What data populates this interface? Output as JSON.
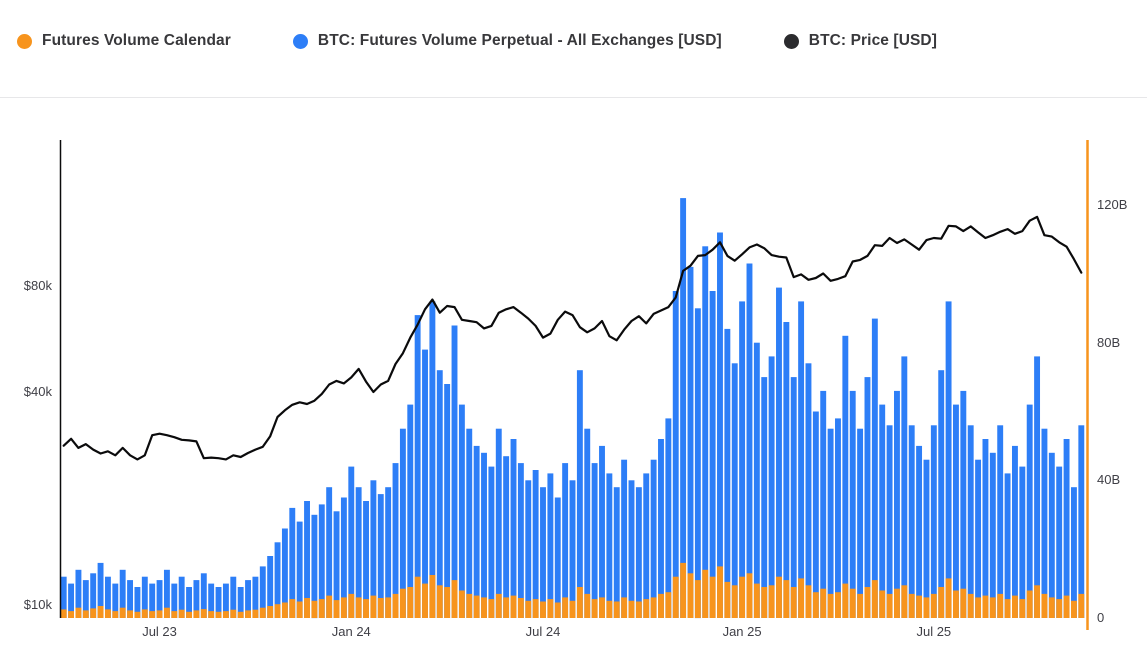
{
  "legend": {
    "items": [
      {
        "label": "Futures Volume Calendar",
        "color": "#f7941d"
      },
      {
        "label": "BTC: Futures Volume Perpetual - All Exchanges [USD]",
        "color": "#2d7ef7"
      },
      {
        "label": "BTC: Price [USD]",
        "color": "#2b2b2e"
      }
    ]
  },
  "chart_data": {
    "type": "mixed",
    "cursor_color": "#f7941d",
    "x_ticks": [
      {
        "label": "Jul 23",
        "index": 13
      },
      {
        "label": "Jan 24",
        "index": 39
      },
      {
        "label": "Jul 24",
        "index": 65
      },
      {
        "label": "Jan 25",
        "index": 92
      },
      {
        "label": "Jul 25",
        "index": 118
      }
    ],
    "left_axis": {
      "scale": "log",
      "unit": "USD",
      "position": "left",
      "ticks": [
        {
          "label": "$10k",
          "value": 10000
        },
        {
          "label": "$40k",
          "value": 40000
        },
        {
          "label": "$80k",
          "value": 80000
        }
      ]
    },
    "right_axis": {
      "scale": "linear",
      "unit": "billion USD",
      "max": 120,
      "position": "right",
      "ticks": [
        {
          "label": "0",
          "value": 0
        },
        {
          "label": "40B",
          "value": 40
        },
        {
          "label": "80B",
          "value": 80
        },
        {
          "label": "120B",
          "value": 120
        }
      ]
    },
    "series": [
      {
        "name": "Futures Volume Calendar",
        "type": "bar",
        "axis": "right",
        "unit": "billion USD",
        "color": "#f7941d",
        "values": [
          2.5,
          2,
          3,
          2.2,
          2.8,
          3.5,
          2.5,
          2,
          3,
          2.2,
          1.8,
          2.5,
          2,
          2.2,
          3,
          2,
          2.4,
          1.8,
          2.2,
          2.6,
          2,
          1.8,
          2,
          2.4,
          1.8,
          2.2,
          2.4,
          3,
          3.5,
          4,
          4.5,
          5.5,
          4.8,
          5.8,
          5,
          5.5,
          6.5,
          5.2,
          6,
          7,
          6,
          5.5,
          6.5,
          5.8,
          6,
          7,
          8.5,
          9,
          12,
          10,
          12.5,
          9.5,
          9,
          11,
          8,
          7,
          6.5,
          6,
          5.5,
          7,
          6,
          6.5,
          5.8,
          5,
          5.5,
          4.8,
          5.5,
          4.5,
          6,
          5,
          9,
          7,
          5.5,
          6,
          5,
          4.8,
          6,
          5,
          4.8,
          5.5,
          6,
          7,
          7.5,
          12,
          16,
          13,
          11,
          14,
          12,
          15,
          10.5,
          9.5,
          12,
          13,
          10,
          9,
          9.5,
          12,
          11,
          9,
          11.5,
          9.5,
          7.5,
          8.5,
          7,
          7.5,
          10,
          8.5,
          7,
          9,
          11,
          8,
          7,
          8.5,
          9.5,
          7,
          6.5,
          6,
          7,
          9,
          11.5,
          8,
          8.5,
          7,
          6,
          6.5,
          6,
          7,
          5.5,
          6.5,
          5.5,
          8,
          9.5,
          7,
          6,
          5.5,
          6.5,
          5,
          7
        ]
      },
      {
        "name": "BTC: Futures Volume Perpetual - All Exchanges [USD]",
        "type": "bar",
        "axis": "right",
        "unit": "billion USD",
        "color": "#2d7ef7",
        "values": [
          12,
          10,
          14,
          11,
          13,
          16,
          12,
          10,
          14,
          11,
          9,
          12,
          10,
          11,
          14,
          10,
          12,
          9,
          11,
          13,
          10,
          9,
          10,
          12,
          9,
          11,
          12,
          15,
          18,
          22,
          26,
          32,
          28,
          34,
          30,
          33,
          38,
          31,
          35,
          44,
          38,
          34,
          40,
          36,
          38,
          45,
          55,
          62,
          88,
          78,
          92,
          72,
          68,
          85,
          62,
          55,
          50,
          48,
          44,
          55,
          47,
          52,
          45,
          40,
          43,
          38,
          42,
          35,
          45,
          40,
          72,
          55,
          45,
          50,
          42,
          38,
          46,
          40,
          38,
          42,
          46,
          52,
          58,
          95,
          122,
          102,
          90,
          108,
          95,
          112,
          84,
          74,
          92,
          103,
          80,
          70,
          76,
          96,
          86,
          70,
          92,
          74,
          60,
          66,
          55,
          58,
          82,
          66,
          55,
          70,
          87,
          62,
          56,
          66,
          76,
          56,
          50,
          46,
          56,
          72,
          92,
          62,
          66,
          56,
          46,
          52,
          48,
          56,
          42,
          50,
          44,
          62,
          76,
          55,
          48,
          44,
          52,
          38,
          56
        ]
      },
      {
        "name": "BTC: Price [USD]",
        "type": "line",
        "axis": "left",
        "unit": "thousand USD",
        "color": "#0b0b0c",
        "values": [
          28.2,
          29.5,
          27.8,
          28.5,
          27.5,
          26.8,
          27.2,
          26.5,
          27.8,
          26.5,
          25.8,
          26.5,
          30.2,
          30.5,
          30.2,
          29.8,
          29.3,
          29.2,
          29,
          26,
          26.1,
          26,
          25.8,
          26.5,
          26.2,
          26.9,
          27.5,
          28,
          30,
          34,
          35.5,
          36.8,
          37.4,
          37,
          37.8,
          39.5,
          42,
          43,
          42.3,
          44,
          46.5,
          42.8,
          40,
          42,
          43,
          48,
          51.5,
          57,
          62,
          68.5,
          73,
          67,
          70,
          69.5,
          64,
          63.5,
          63,
          60.5,
          61.5,
          67,
          68.5,
          69.5,
          67,
          64.5,
          61.5,
          57,
          58.5,
          64,
          67.5,
          66,
          61,
          59,
          60.5,
          63.5,
          57.5,
          56,
          60,
          63.5,
          65.5,
          62.5,
          66.5,
          68,
          69.5,
          74,
          88,
          91,
          97,
          97.5,
          101,
          106,
          97,
          94,
          98,
          102.5,
          104.5,
          102,
          97.5,
          96.5,
          96,
          84.5,
          86,
          83,
          84,
          86.5,
          82.5,
          83.5,
          85,
          93.5,
          94.5,
          97,
          104,
          103.5,
          109,
          105.5,
          108,
          104.5,
          101,
          107.5,
          109,
          108.5,
          118,
          117.5,
          114,
          117.5,
          113,
          109,
          111,
          113.5,
          115.5,
          112,
          114,
          122,
          125,
          111,
          110,
          106,
          103,
          95,
          87
        ]
      }
    ]
  }
}
